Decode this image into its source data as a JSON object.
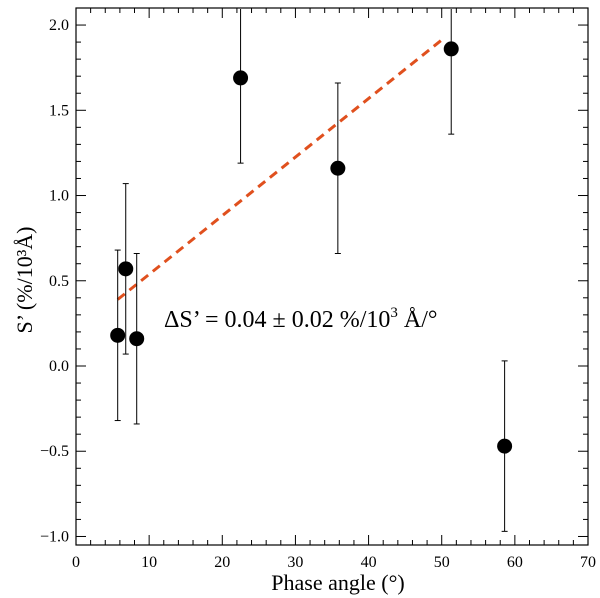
{
  "chart_data": {
    "type": "scatter",
    "title": "",
    "xlabel": "Phase angle (°)",
    "ylabel": "S’ (%/10³Å)",
    "xlim": [
      0,
      70
    ],
    "ylim": [
      -1.05,
      2.1
    ],
    "x_ticks": [
      0,
      10,
      20,
      30,
      40,
      50,
      60,
      70
    ],
    "x_tick_labels": [
      "0",
      "10",
      "20",
      "30",
      "40",
      "50",
      "60",
      "70"
    ],
    "y_ticks": [
      -1.0,
      -0.5,
      0.0,
      0.5,
      1.0,
      1.5,
      2.0
    ],
    "y_tick_labels": [
      "−1.0",
      "−0.5",
      "0.0",
      "0.5",
      "1.0",
      "1.5",
      "2.0"
    ],
    "grid": false,
    "series": [
      {
        "name": "measurements",
        "x": [
          5.7,
          6.8,
          8.3,
          22.5,
          35.8,
          51.3,
          58.6
        ],
        "y": [
          0.18,
          0.57,
          0.16,
          1.69,
          1.16,
          1.86,
          -0.47
        ],
        "yerr": [
          0.5,
          0.5,
          0.5,
          0.5,
          0.5,
          0.5,
          0.5
        ]
      }
    ],
    "fit_line": {
      "name": "linear fit",
      "x": [
        5.7,
        50.5
      ],
      "y": [
        0.39,
        1.93
      ],
      "color": "#e0501e",
      "style": "dashed"
    },
    "annotation": {
      "prefix": "ΔS’ = 0.04 ± 0.02 %/10",
      "superscript": "3",
      "suffix": " Å/°"
    },
    "colors": {
      "axis": "#000000",
      "marker": "#000000",
      "fit": "#e0501e"
    }
  }
}
